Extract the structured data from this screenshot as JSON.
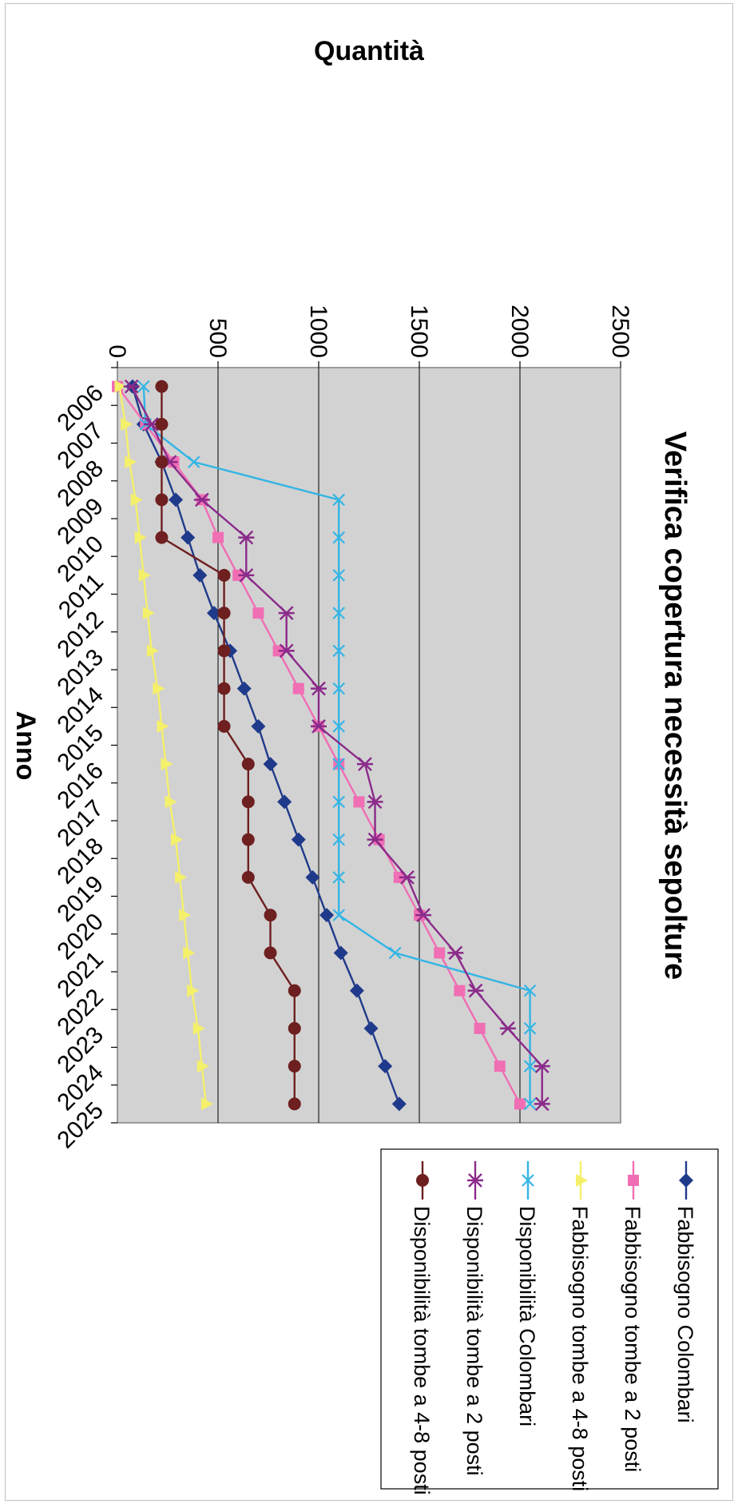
{
  "chart_data": {
    "type": "line",
    "title": "Verifica copertura necessità sepolture",
    "xlabel": "Anno",
    "ylabel": "Quantità",
    "ylim": [
      0,
      2500
    ],
    "yticks": [
      0,
      500,
      1000,
      1500,
      2000,
      2500
    ],
    "grid": true,
    "legend_position": "right",
    "x": [
      "2006",
      "2007",
      "2008",
      "2009",
      "2010",
      "2011",
      "2012",
      "2013",
      "2014",
      "2015",
      "2016",
      "2017",
      "2018",
      "2019",
      "2020",
      "2021",
      "2022",
      "2023",
      "2024",
      "2025"
    ],
    "series": [
      {
        "name": "Fabbisogno Colombari",
        "color": "#1f3a8a",
        "marker": "diamond",
        "values": [
          75,
          130,
          220,
          290,
          350,
          410,
          480,
          560,
          630,
          700,
          760,
          830,
          900,
          970,
          1040,
          1110,
          1190,
          1260,
          1330,
          1400
        ]
      },
      {
        "name": "Fabbisogno tombe a 2 posti",
        "color": "#f06eb4",
        "marker": "square",
        "values": [
          0,
          140,
          280,
          420,
          500,
          600,
          700,
          800,
          900,
          1000,
          1100,
          1200,
          1300,
          1400,
          1500,
          1600,
          1700,
          1800,
          1900,
          2000
        ]
      },
      {
        "name": "Fabbisogno tombe a 4-8 posti",
        "color": "#f5f06a",
        "marker": "triangle",
        "values": [
          10,
          40,
          60,
          90,
          110,
          130,
          150,
          170,
          200,
          220,
          240,
          260,
          290,
          310,
          330,
          350,
          370,
          400,
          420,
          440
        ]
      },
      {
        "name": "Disponibilità Colombari",
        "color": "#33b5e5",
        "marker": "x",
        "values": [
          130,
          140,
          380,
          1100,
          1100,
          1100,
          1100,
          1100,
          1100,
          1100,
          1100,
          1100,
          1100,
          1100,
          1100,
          1380,
          2050,
          2050,
          2050,
          2050
        ]
      },
      {
        "name": "Disponibilità tombe a 2 posti",
        "color": "#8b2a8a",
        "marker": "star",
        "values": [
          70,
          170,
          260,
          420,
          640,
          640,
          840,
          840,
          1000,
          1000,
          1230,
          1280,
          1280,
          1440,
          1520,
          1680,
          1780,
          1940,
          2110,
          2110
        ]
      },
      {
        "name": "Disponibilità tombe a 4-8 posti",
        "color": "#6e1f1f",
        "marker": "circle",
        "values": [
          220,
          220,
          220,
          220,
          220,
          530,
          530,
          530,
          530,
          530,
          650,
          650,
          650,
          650,
          760,
          760,
          880,
          880,
          880,
          880
        ]
      }
    ]
  }
}
